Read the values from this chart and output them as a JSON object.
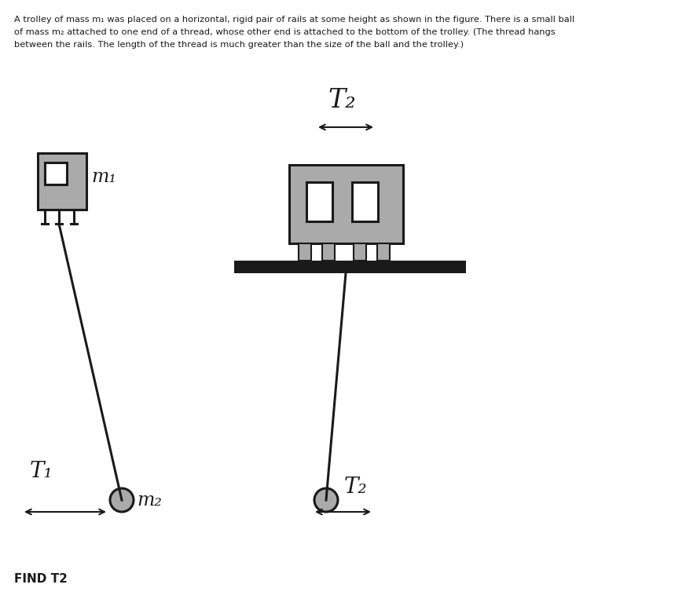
{
  "bg_color": "#ffffff",
  "dark_color": "#1a1a1a",
  "gray_color": "#aaaaaa",
  "gray_dark": "#888888",
  "figsize": [
    8.59,
    7.63
  ],
  "dpi": 100,
  "line1": "A trolley of mass m₁ was placed on a horizontal, rigid pair of rails at some height as shown in the figure. There is a small ball",
  "line2": "of mass m₂ attached to one end of a thread, whose other end is attached to the bottom of the trolley. (The thread hangs",
  "line3": "between the rails. The length of the thread is much greater than the size of the ball and the trolley.)",
  "find_text": "FIND T2",
  "T2_top": "T₂",
  "T1_label": "T₁",
  "T2_bot": "T₂",
  "m1_label": "m₁",
  "m2_label": "m₂"
}
